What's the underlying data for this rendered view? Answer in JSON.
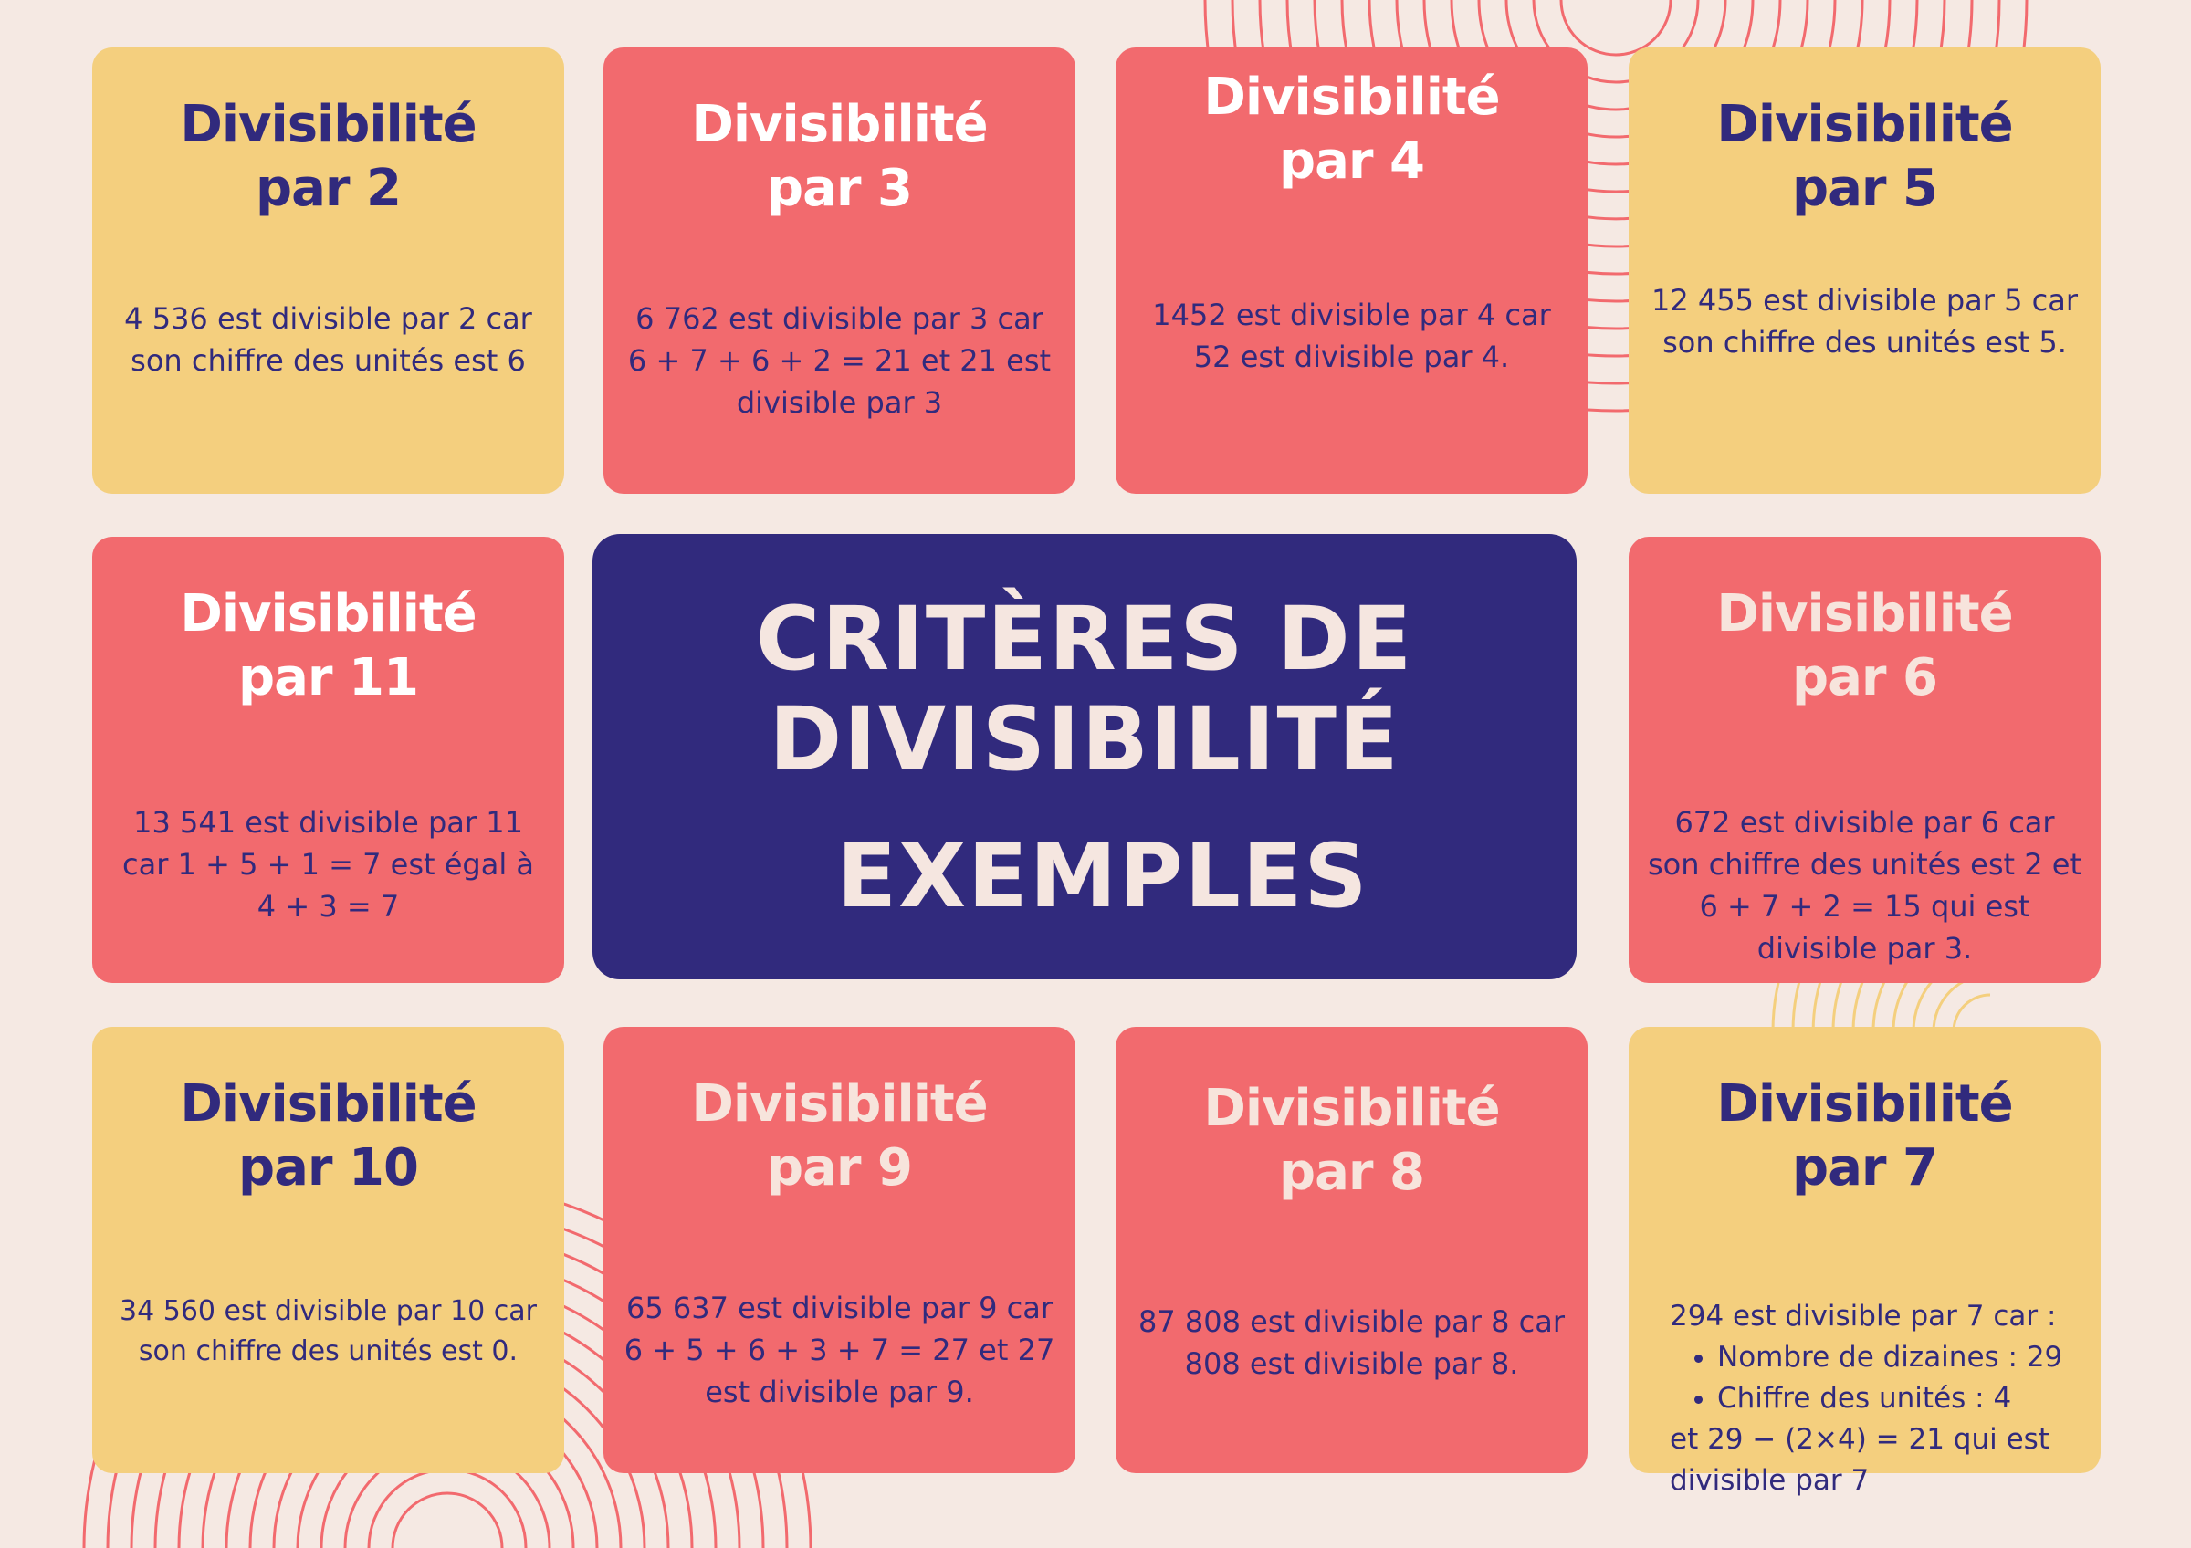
{
  "colors": {
    "background": "#f5e9e3",
    "yellow": "#f4cf7e",
    "red": "#f26a6e",
    "navy": "#312a7d"
  },
  "center": {
    "line1": "CRITÈRES DE",
    "line2": "DIVISIBILITÉ",
    "line3": "EXEMPLES"
  },
  "cards": [
    {
      "title1": "Divisibilité",
      "title2": "par 2",
      "text": "4 536 est divisible par 2 car son chiffre des unités est 6"
    },
    {
      "title1": "Divisibilité",
      "title2": "par 3",
      "text": "6 762 est divisible par 3 car 6 + 7 + 6 + 2 = 21 et 21 est divisible par 3"
    },
    {
      "title1": "Divisibilité",
      "title2": "par 4",
      "text": "1452 est divisible par 4 car 52 est divisible par 4."
    },
    {
      "title1": "Divisibilité",
      "title2": "par 5",
      "text": "12 455 est divisible par 5 car son chiffre des unités est 5."
    },
    {
      "title1": "Divisibilité",
      "title2": "par 11",
      "text": "13 541 est divisible par 11 car 1 + 5 + 1 = 7 est égal à 4 + 3 = 7"
    },
    {
      "title1": "Divisibilité",
      "title2": "par 6",
      "text": "672 est divisible par 6 car son chiffre des unités est 2 et 6 + 7 + 2 = 15 qui est divisible par 3."
    },
    {
      "title1": "Divisibilité",
      "title2": "par 10",
      "text": "34 560 est divisible par 10 car son chiffre des unités est 0."
    },
    {
      "title1": "Divisibilité",
      "title2": "par 9",
      "text": "65 637 est divisible par 9 car 6 + 5 + 6 + 3 + 7 = 27 et 27 est divisible par 9."
    },
    {
      "title1": "Divisibilité",
      "title2": "par 8",
      "text": "87 808 est divisible par 8 car 808 est divisible par 8."
    },
    {
      "title1": "Divisibilité",
      "title2": "par 7",
      "intro": "294 est divisible par 7 car :",
      "bullets": [
        "Nombre de dizaines : 29",
        "Chiffre des unités : 4"
      ],
      "outro": "et 29 − (2×4) = 21 qui est divisible par 7"
    }
  ]
}
